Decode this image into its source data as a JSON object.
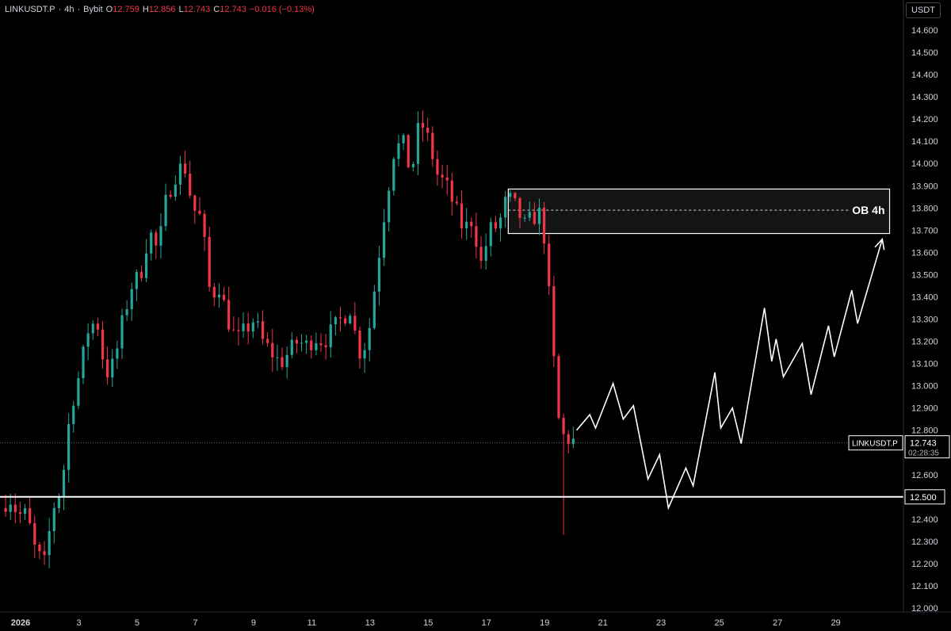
{
  "header": {
    "symbol": "LINKUSDT.P",
    "sep1": "·",
    "timeframe": "4h",
    "sep2": "·",
    "exchange": "Bybit",
    "open_label": "O",
    "open": "12.759",
    "high_label": "H",
    "high": "12.856",
    "low_label": "L",
    "low": "12.743",
    "close_label": "C",
    "close": "12.743",
    "change": "−0.016 (−0.13%)"
  },
  "currency_button": "USDT",
  "colors": {
    "up": "#26a69a",
    "down": "#f23645",
    "background": "#000000",
    "text": "#d1d4dc"
  },
  "chart_data": {
    "type": "candlestick",
    "symbol": "LINKUSDT.P",
    "interval": "4h",
    "y_range": [
      12.0,
      14.7
    ],
    "y_ticks": [
      "14.600",
      "14.500",
      "14.400",
      "14.300",
      "14.200",
      "14.100",
      "14.000",
      "13.900",
      "13.800",
      "13.700",
      "13.600",
      "13.500",
      "13.400",
      "13.300",
      "13.200",
      "13.100",
      "13.000",
      "12.900",
      "12.800",
      "12.700",
      "12.600",
      "12.500",
      "12.400",
      "12.300",
      "12.200",
      "12.100",
      "12.000"
    ],
    "x_ticks": [
      {
        "label": "2026",
        "day": 1,
        "bold": true
      },
      {
        "label": "3",
        "day": 3
      },
      {
        "label": "5",
        "day": 5
      },
      {
        "label": "7",
        "day": 7
      },
      {
        "label": "9",
        "day": 9
      },
      {
        "label": "11",
        "day": 11
      },
      {
        "label": "13",
        "day": 13
      },
      {
        "label": "15",
        "day": 15
      },
      {
        "label": "17",
        "day": 17
      },
      {
        "label": "19",
        "day": 19
      },
      {
        "label": "21",
        "day": 21
      },
      {
        "label": "23",
        "day": 23
      },
      {
        "label": "25",
        "day": 25
      },
      {
        "label": "27",
        "day": 27
      },
      {
        "label": "29",
        "day": 29
      }
    ],
    "x_range_days": [
      0.4,
      30.4
    ],
    "anchors": [
      [
        0.4,
        12.45
      ],
      [
        0.7,
        12.5
      ],
      [
        1.0,
        12.42
      ],
      [
        1.3,
        12.42
      ],
      [
        1.6,
        12.25
      ],
      [
        1.9,
        12.2
      ],
      [
        2.2,
        12.45
      ],
      [
        2.5,
        12.55
      ],
      [
        2.8,
        12.9
      ],
      [
        3.1,
        13.05
      ],
      [
        3.4,
        13.25
      ],
      [
        3.7,
        13.3
      ],
      [
        4.0,
        13.05
      ],
      [
        4.3,
        13.1
      ],
      [
        4.6,
        13.3
      ],
      [
        4.9,
        13.45
      ],
      [
        5.2,
        13.5
      ],
      [
        5.5,
        13.7
      ],
      [
        5.8,
        13.6
      ],
      [
        6.1,
        13.85
      ],
      [
        6.4,
        13.95
      ],
      [
        6.7,
        14.0
      ],
      [
        7.0,
        13.8
      ],
      [
        7.3,
        13.75
      ],
      [
        7.6,
        13.4
      ],
      [
        7.9,
        13.45
      ],
      [
        8.2,
        13.3
      ],
      [
        8.5,
        13.2
      ],
      [
        8.8,
        13.25
      ],
      [
        9.1,
        13.3
      ],
      [
        9.4,
        13.2
      ],
      [
        9.7,
        13.15
      ],
      [
        10.0,
        13.1
      ],
      [
        10.3,
        13.15
      ],
      [
        10.6,
        13.2
      ],
      [
        10.9,
        13.18
      ],
      [
        11.2,
        13.22
      ],
      [
        11.5,
        13.2
      ],
      [
        11.8,
        13.25
      ],
      [
        12.1,
        13.3
      ],
      [
        12.4,
        13.35
      ],
      [
        12.7,
        13.15
      ],
      [
        13.0,
        13.2
      ],
      [
        13.3,
        13.5
      ],
      [
        13.6,
        13.8
      ],
      [
        13.9,
        14.05
      ],
      [
        14.2,
        14.1
      ],
      [
        14.5,
        13.95
      ],
      [
        14.8,
        14.2
      ],
      [
        15.1,
        14.1
      ],
      [
        15.4,
        13.95
      ],
      [
        15.7,
        13.9
      ],
      [
        16.0,
        13.8
      ],
      [
        16.3,
        13.7
      ],
      [
        16.6,
        13.75
      ],
      [
        16.9,
        13.55
      ],
      [
        17.2,
        13.7
      ],
      [
        17.5,
        13.72
      ],
      [
        17.8,
        13.85
      ],
      [
        18.1,
        13.8
      ],
      [
        18.4,
        13.72
      ],
      [
        18.7,
        13.76
      ],
      [
        19.0,
        13.78
      ],
      [
        19.3,
        13.3
      ],
      [
        19.6,
        12.8
      ],
      [
        19.9,
        12.76
      ],
      [
        20.05,
        12.75
      ]
    ],
    "annotations": {
      "order_block": {
        "label": "OB 4h",
        "price_top": 13.885,
        "price_bottom": 13.685,
        "price_mid": 13.79,
        "day_from": 17.75,
        "day_to": 30.85
      },
      "support_line": {
        "price": 12.5,
        "label": "12.500"
      },
      "current_price": {
        "symbol": "LINKUSDT.P",
        "price": 12.743,
        "label": "12.743",
        "countdown": "02:28:35"
      },
      "projection": [
        [
          20.1,
          12.8
        ],
        [
          20.55,
          12.87
        ],
        [
          20.75,
          12.81
        ],
        [
          21.35,
          13.01
        ],
        [
          21.7,
          12.85
        ],
        [
          22.05,
          12.91
        ],
        [
          22.55,
          12.58
        ],
        [
          22.95,
          12.69
        ],
        [
          23.25,
          12.45
        ],
        [
          23.85,
          12.63
        ],
        [
          24.1,
          12.55
        ],
        [
          24.85,
          13.06
        ],
        [
          25.05,
          12.81
        ],
        [
          25.45,
          12.9
        ],
        [
          25.75,
          12.74
        ],
        [
          26.55,
          13.35
        ],
        [
          26.8,
          13.11
        ],
        [
          26.95,
          13.21
        ],
        [
          27.2,
          13.04
        ],
        [
          27.85,
          13.19
        ],
        [
          28.15,
          12.96
        ],
        [
          28.75,
          13.27
        ],
        [
          28.95,
          13.13
        ],
        [
          29.55,
          13.43
        ],
        [
          29.75,
          13.28
        ],
        [
          30.6,
          13.66
        ]
      ]
    }
  }
}
